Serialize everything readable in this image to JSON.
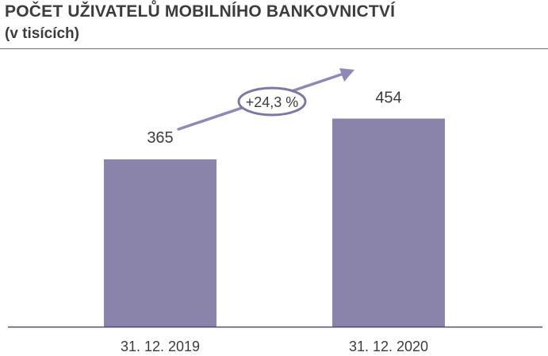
{
  "header": {
    "title": "POČET UŽIVATELŮ MOBILNÍHO BANKOVNICTVÍ",
    "subtitle": "(v tisících)"
  },
  "chart_data": {
    "type": "bar",
    "title": "POČET UŽIVATELŮ MOBILNÍHO BANKOVNICTVÍ",
    "subtitle": "(v tisících)",
    "categories": [
      "31. 12. 2019",
      "31. 12. 2020"
    ],
    "values": [
      365,
      454
    ],
    "value_labels": [
      "365",
      "454"
    ],
    "ylim": [
      0,
      500
    ],
    "xlabel": "",
    "ylabel": "",
    "grid": false,
    "legend": "none",
    "annotation": {
      "text": "+24,3 %",
      "shape": "arrow-with-ellipse",
      "from_category": "31. 12. 2019",
      "to_category": "31. 12. 2020"
    },
    "colors": {
      "bar": "#8b84aa",
      "arrow": "#9189b3",
      "ellipse_stroke": "#7f77a3",
      "axis": "#4e4e6e",
      "text": "#3c3c3c"
    }
  }
}
